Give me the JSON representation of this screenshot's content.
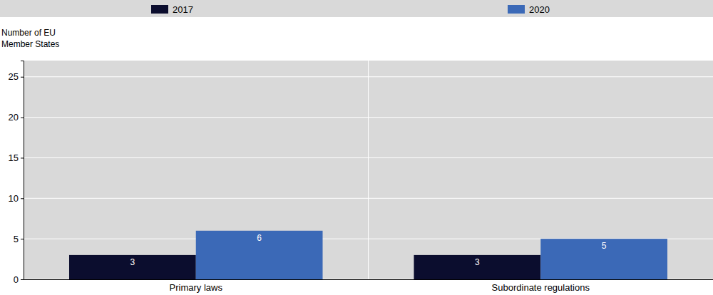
{
  "chart_data": {
    "type": "bar",
    "y_label": "Number of EU Member States",
    "categories": [
      "Primary laws",
      "Subordinate regulations"
    ],
    "series": [
      {
        "name": "2017",
        "color": "#0b0d2e",
        "values": [
          3,
          3
        ]
      },
      {
        "name": "2020",
        "color": "#3b69b7",
        "values": [
          6,
          5
        ]
      }
    ],
    "ylim": [
      0,
      27
    ],
    "yticks": [
      0,
      5,
      10,
      15,
      20,
      25
    ],
    "grid": true,
    "legend": "top",
    "data_labels": true
  }
}
